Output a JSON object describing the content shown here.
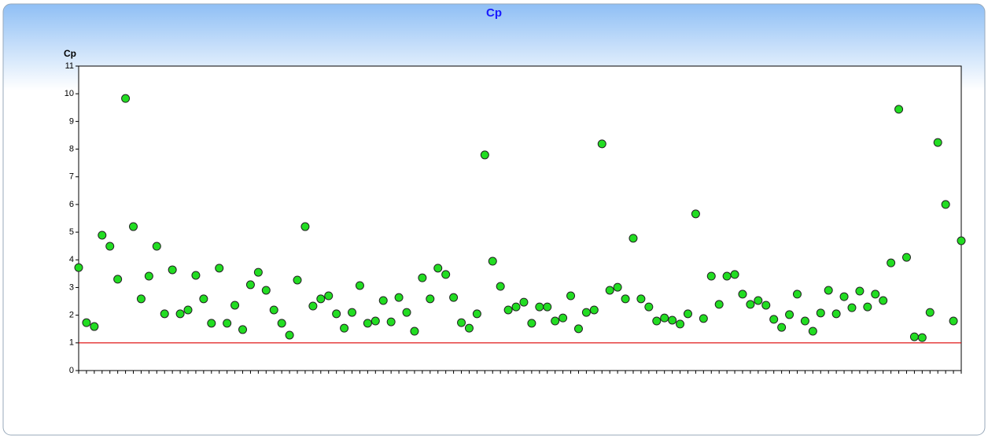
{
  "chart_data": {
    "type": "scatter",
    "title": "Cp",
    "y_label": "Cp",
    "categories": [
      null,
      null,
      null,
      null,
      null,
      null,
      null,
      null,
      null,
      null,
      null,
      null,
      null,
      null,
      null,
      null,
      null,
      null,
      null,
      null,
      null,
      null,
      null,
      null,
      null,
      null,
      null,
      null,
      null,
      null,
      null,
      null,
      null,
      null,
      null,
      null,
      null,
      null,
      null,
      null,
      null,
      null,
      null,
      null,
      null,
      null,
      null,
      null,
      null,
      null,
      null,
      null,
      null,
      null,
      null,
      null,
      null,
      null,
      null,
      null,
      null,
      null,
      null,
      null,
      null,
      null,
      null,
      null,
      null,
      null,
      null,
      null,
      null,
      null,
      null,
      null,
      null,
      null,
      null,
      null,
      null,
      null,
      null,
      null,
      null,
      null,
      null,
      null,
      null,
      null,
      null,
      null,
      null,
      null,
      null,
      null,
      null,
      null,
      null,
      null,
      null,
      null,
      null,
      null,
      null,
      null,
      null,
      null,
      null,
      null,
      null,
      null,
      null,
      null
    ],
    "values": [
      3.72,
      1.73,
      1.59,
      4.89,
      4.49,
      3.3,
      9.83,
      5.2,
      2.59,
      3.41,
      4.49,
      2.05,
      3.64,
      2.05,
      2.19,
      3.44,
      2.59,
      1.71,
      3.7,
      1.71,
      2.36,
      1.48,
      3.1,
      3.55,
      2.9,
      2.19,
      1.71,
      1.28,
      3.27,
      5.2,
      2.33,
      2.59,
      2.7,
      2.05,
      1.53,
      2.1,
      3.07,
      1.71,
      1.79,
      2.53,
      1.76,
      2.64,
      2.1,
      1.42,
      3.35,
      2.59,
      3.7,
      3.47,
      2.64,
      1.73,
      1.53,
      2.05,
      7.79,
      3.95,
      3.04,
      2.19,
      2.3,
      2.47,
      1.71,
      2.3,
      2.3,
      1.79,
      1.9,
      2.7,
      1.51,
      2.1,
      2.19,
      8.19,
      2.9,
      3.01,
      2.59,
      4.78,
      2.59,
      2.3,
      1.79,
      1.9,
      1.82,
      1.68,
      2.05,
      5.66,
      1.88,
      3.41,
      2.39,
      3.41,
      3.47,
      2.76,
      2.39,
      2.53,
      2.36,
      1.85,
      1.56,
      2.02,
      2.76,
      1.79,
      1.42,
      2.08,
      2.9,
      2.05,
      2.67,
      2.27,
      2.87,
      2.3,
      2.76,
      2.53,
      3.89,
      9.44,
      4.09,
      1.22,
      1.19,
      2.1,
      8.24,
      6.0,
      1.79,
      4.69
    ],
    "color": "#22dd22",
    "ylim": [
      0,
      11
    ],
    "yticks": [
      0,
      1,
      2,
      3,
      4,
      5,
      6,
      7,
      8,
      9,
      10,
      11
    ],
    "reference_line": {
      "value": 1,
      "color": "#dd0000"
    }
  }
}
